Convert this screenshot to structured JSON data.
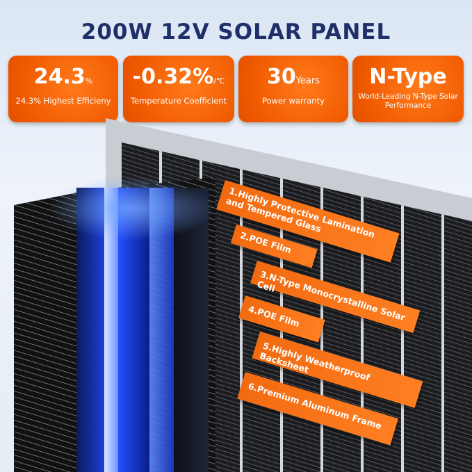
{
  "title": "200W 12V SOLAR PANEL",
  "features": [
    {
      "value": "24.3",
      "unit": "%",
      "label": "24.3% Highest Efficieny"
    },
    {
      "value": "-0.32%",
      "unit": "/℃",
      "label": "Temperature Coefficient"
    },
    {
      "value": "30",
      "unit": "Years",
      "label": "Power warranty"
    },
    {
      "value": "N-Type",
      "unit": "",
      "label": "World-Leading N-Type Solar Performance"
    }
  ],
  "layers": [
    "1.Highly Protective Lamination and Tempered Glass",
    "2.POE Film",
    "3.N-Type Monocrystalline Solar Cell",
    "4.POE Film",
    "5.Highly Weatherproof Backsheet",
    "6.Premium Aluminum Frame"
  ],
  "colors": {
    "accent": "#f26a10",
    "title": "#1f2f6a"
  }
}
